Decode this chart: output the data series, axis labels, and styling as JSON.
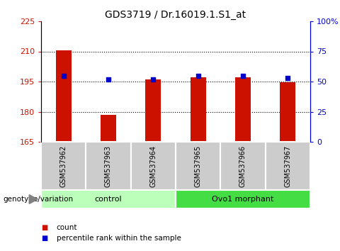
{
  "title": "GDS3719 / Dr.16019.1.S1_at",
  "samples": [
    "GSM537962",
    "GSM537963",
    "GSM537964",
    "GSM537965",
    "GSM537966",
    "GSM537967"
  ],
  "counts": [
    210.5,
    178.5,
    196.0,
    197.0,
    197.0,
    194.5
  ],
  "percentile_ranks": [
    55,
    52,
    52,
    55,
    55,
    53
  ],
  "ylim_left": [
    165,
    225
  ],
  "ylim_right": [
    0,
    100
  ],
  "yticks_left": [
    165,
    180,
    195,
    210,
    225
  ],
  "yticks_right": [
    0,
    25,
    50,
    75,
    100
  ],
  "ytick_labels_right": [
    "0",
    "25",
    "50",
    "75",
    "100%"
  ],
  "groups": [
    {
      "label": "control",
      "indices": [
        0,
        1,
        2
      ],
      "color": "#bbffbb"
    },
    {
      "label": "Ovo1 morphant",
      "indices": [
        3,
        4,
        5
      ],
      "color": "#44dd44"
    }
  ],
  "bar_color": "#cc1100",
  "dot_color": "#0000cc",
  "bar_width": 0.35,
  "bar_base": 165,
  "dot_size": 18,
  "left_tick_color": "#cc1100",
  "right_tick_color": "#0000cc",
  "legend_count_color": "#cc1100",
  "legend_dot_color": "#0000cc",
  "genotype_label": "genotype/variation",
  "legend_items": [
    "count",
    "percentile rank within the sample"
  ],
  "sample_box_color": "#cccccc",
  "grid_color": "black",
  "grid_linestyle": ":"
}
